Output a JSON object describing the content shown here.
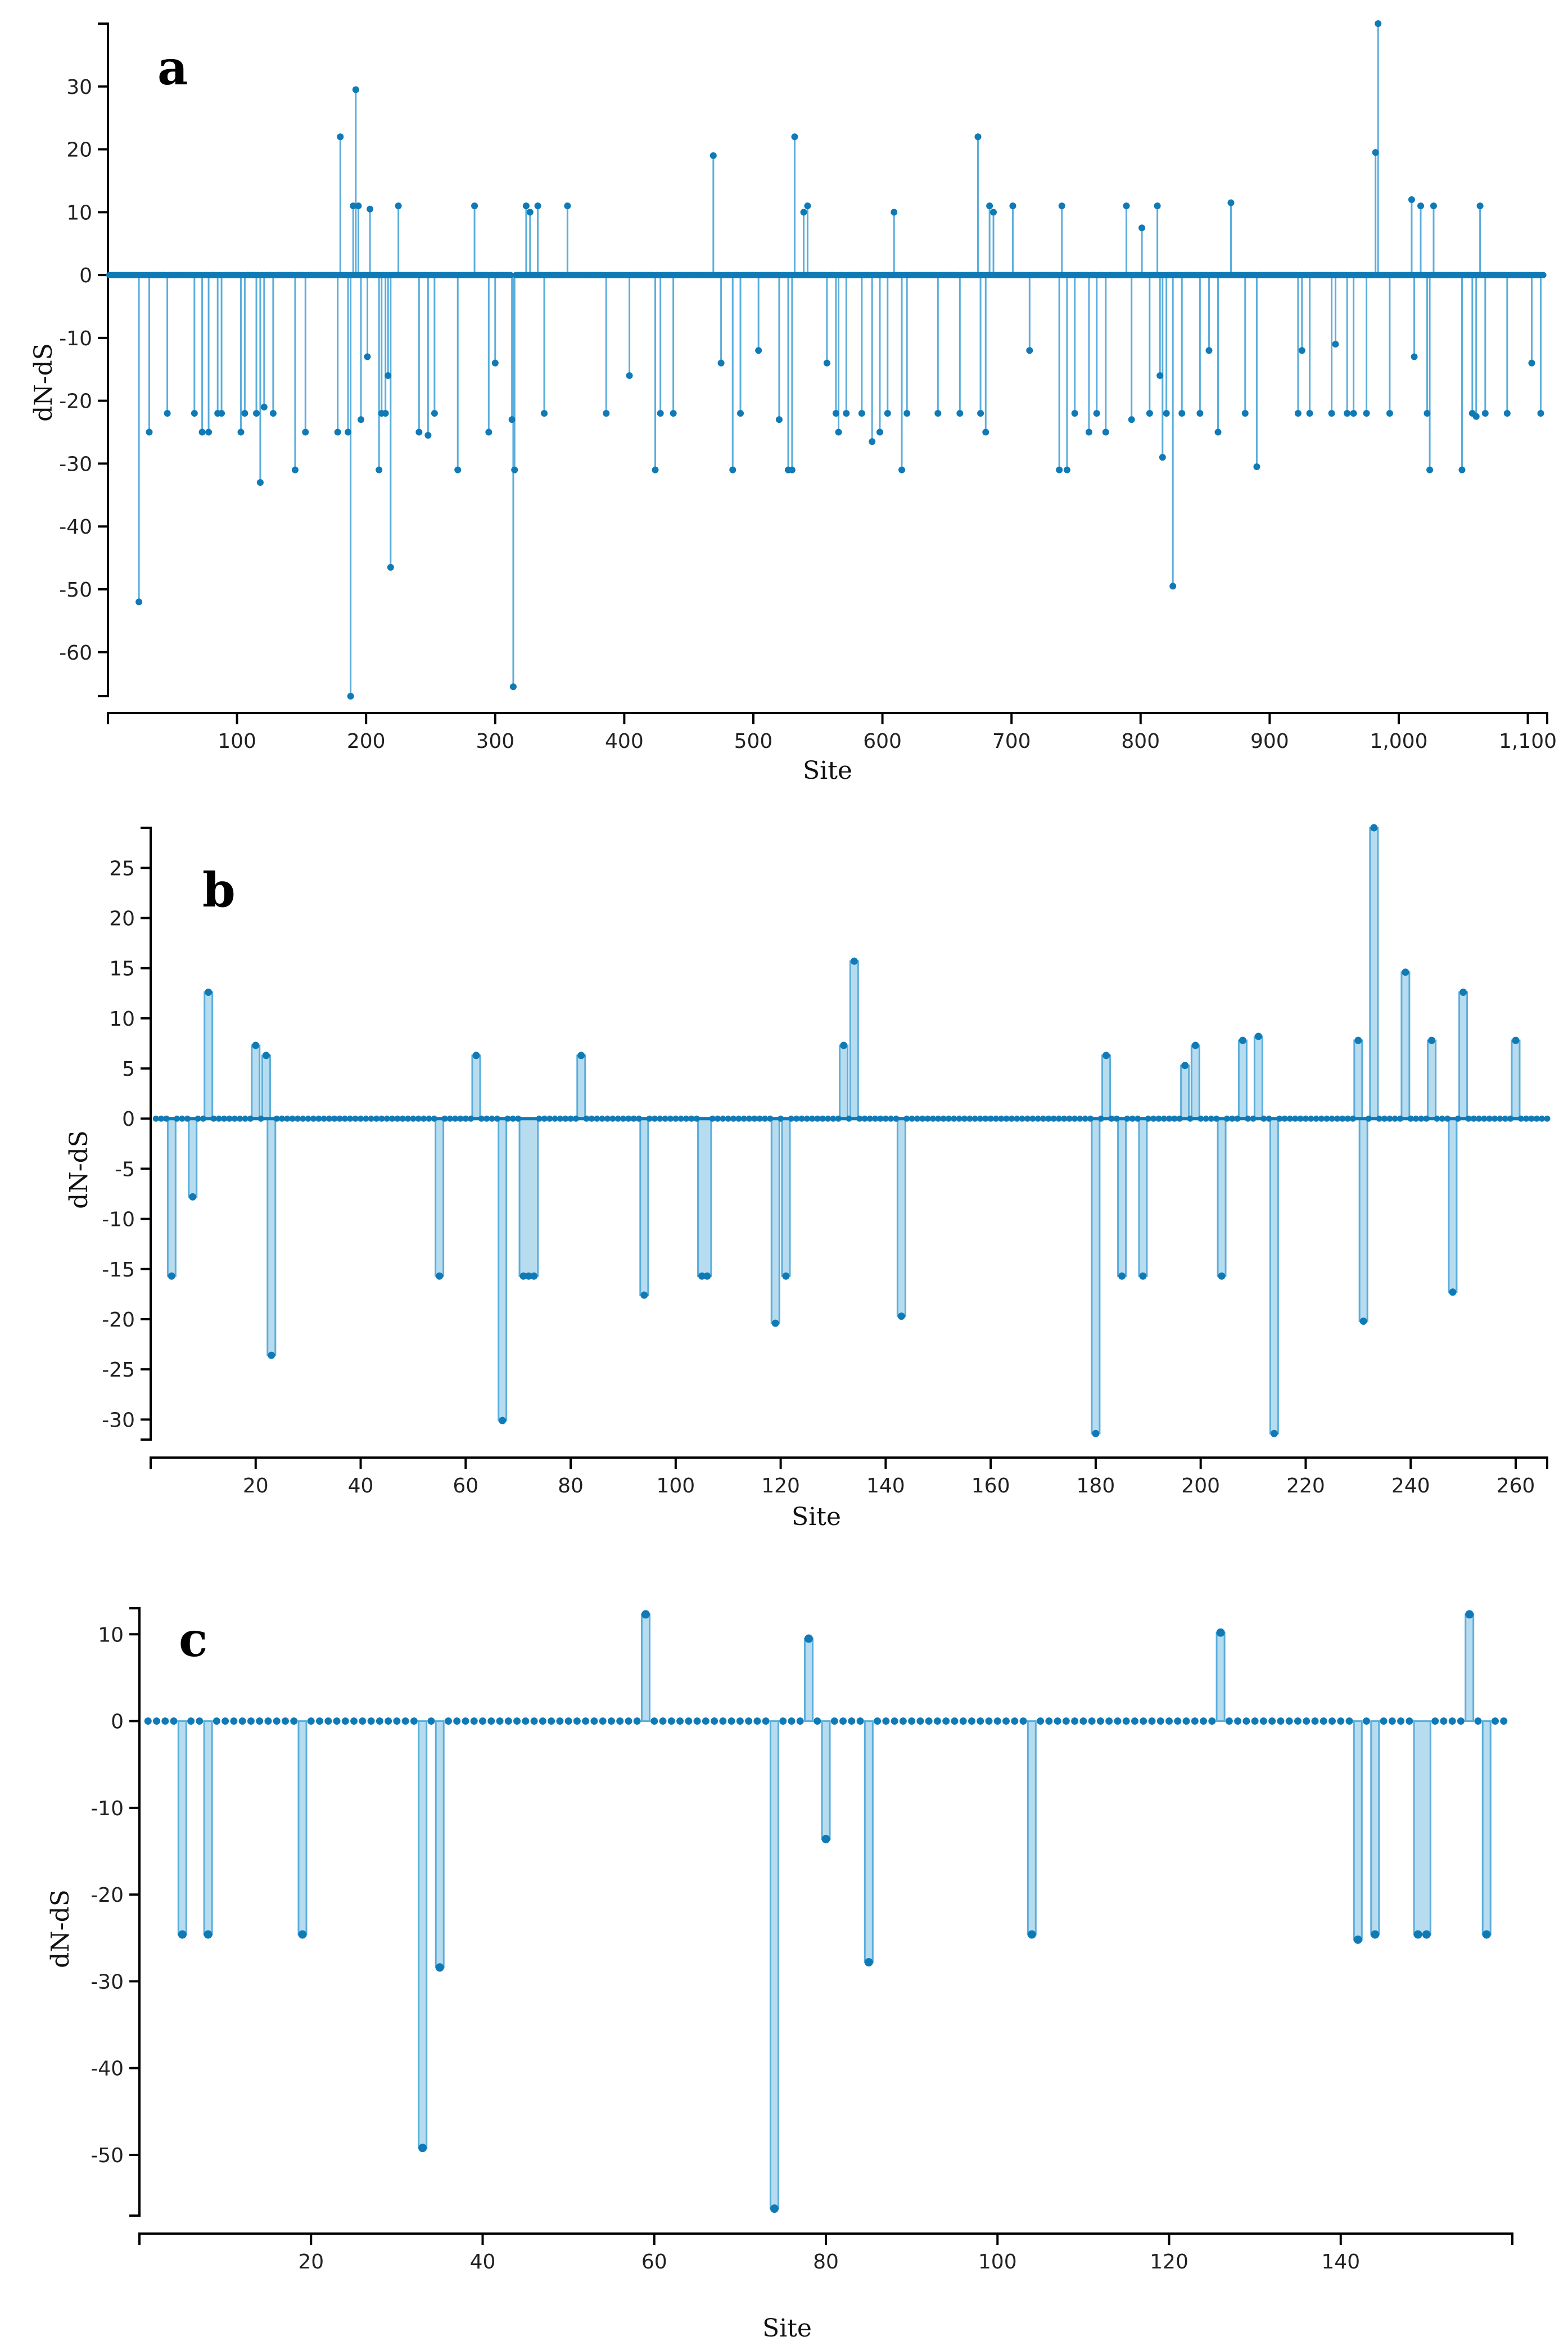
{
  "colors": {
    "dot": "#0f7ab5",
    "stem": "#5aaedc",
    "fill": "#b7dcef",
    "axis": "#000000"
  },
  "chart_data": [
    {
      "type": "scatter",
      "panel_label": "a",
      "title": "",
      "xlabel": "Site",
      "ylabel": "dN-dS",
      "xlim": [
        0,
        1115
      ],
      "ylim": [
        -67,
        40
      ],
      "x_ticks": [
        100,
        200,
        300,
        400,
        500,
        600,
        700,
        800,
        900,
        1000,
        1100
      ],
      "x_tick_labels": [
        "100",
        "200",
        "300",
        "400",
        "500",
        "600",
        "700",
        "800",
        "900",
        "1,000",
        "1,100"
      ],
      "y_ticks": [
        30,
        20,
        10,
        0,
        -10,
        -20,
        -30,
        -40,
        -50,
        -60
      ],
      "y_tick_labels": [
        "30",
        "20",
        "10",
        "0",
        "-10",
        "-20",
        "-30",
        "-40",
        "-50",
        "-60"
      ],
      "render_style": "stem",
      "n_sites": 1112,
      "baseline_value": 0,
      "series": [
        {
          "name": "dN-dS",
          "points": [
            [
              24,
              -52
            ],
            [
              32,
              -25
            ],
            [
              46,
              -22
            ],
            [
              67,
              -22
            ],
            [
              73,
              -25
            ],
            [
              78,
              -25
            ],
            [
              85,
              -22
            ],
            [
              88,
              -22
            ],
            [
              103,
              -25
            ],
            [
              106,
              -22
            ],
            [
              115,
              -22
            ],
            [
              118,
              -33
            ],
            [
              121,
              -21
            ],
            [
              128,
              -22
            ],
            [
              145,
              -31
            ],
            [
              153,
              -25
            ],
            [
              178,
              -25
            ],
            [
              180,
              22
            ],
            [
              186,
              -25
            ],
            [
              188,
              -67
            ],
            [
              190,
              11
            ],
            [
              192,
              29.5
            ],
            [
              194,
              11
            ],
            [
              196,
              -23
            ],
            [
              201,
              -13
            ],
            [
              203,
              10.5
            ],
            [
              210,
              -31
            ],
            [
              212,
              -22
            ],
            [
              215,
              -22
            ],
            [
              217,
              -16
            ],
            [
              219,
              -46.5
            ],
            [
              225,
              11
            ],
            [
              241,
              -25
            ],
            [
              248,
              -25.5
            ],
            [
              253,
              -22
            ],
            [
              271,
              -31
            ],
            [
              284,
              11
            ],
            [
              295,
              -25
            ],
            [
              300,
              -14
            ],
            [
              313,
              -23
            ],
            [
              314,
              -65.5
            ],
            [
              315,
              -31
            ],
            [
              324,
              11
            ],
            [
              327,
              10
            ],
            [
              333,
              11
            ],
            [
              338,
              -22
            ],
            [
              356,
              11
            ],
            [
              386,
              -22
            ],
            [
              404,
              -16
            ],
            [
              424,
              -31
            ],
            [
              428,
              -22
            ],
            [
              438,
              -22
            ],
            [
              469,
              19
            ],
            [
              475,
              -14
            ],
            [
              484,
              -31
            ],
            [
              490,
              -22
            ],
            [
              504,
              -12
            ],
            [
              520,
              -23
            ],
            [
              527,
              -31
            ],
            [
              530,
              -31
            ],
            [
              532,
              22
            ],
            [
              539,
              10
            ],
            [
              542,
              11
            ],
            [
              557,
              -14
            ],
            [
              564,
              -22
            ],
            [
              566,
              -25
            ],
            [
              572,
              -22
            ],
            [
              584,
              -22
            ],
            [
              592,
              -26.5
            ],
            [
              598,
              -25
            ],
            [
              604,
              -22
            ],
            [
              609,
              10
            ],
            [
              615,
              -31
            ],
            [
              619,
              -22
            ],
            [
              643,
              -22
            ],
            [
              660,
              -22
            ],
            [
              674,
              22
            ],
            [
              676,
              -22
            ],
            [
              680,
              -25
            ],
            [
              683,
              11
            ],
            [
              686,
              10
            ],
            [
              701,
              11
            ],
            [
              714,
              -12
            ],
            [
              737,
              -31
            ],
            [
              739,
              11
            ],
            [
              743,
              -31
            ],
            [
              749,
              -22
            ],
            [
              760,
              -25
            ],
            [
              766,
              -22
            ],
            [
              773,
              -25
            ],
            [
              789,
              11
            ],
            [
              793,
              -23
            ],
            [
              801,
              7.5
            ],
            [
              807,
              -22
            ],
            [
              813,
              11
            ],
            [
              815,
              -16
            ],
            [
              817,
              -29
            ],
            [
              820,
              -22
            ],
            [
              825,
              -49.5
            ],
            [
              832,
              -22
            ],
            [
              846,
              -22
            ],
            [
              853,
              -12
            ],
            [
              860,
              -25
            ],
            [
              870,
              11.5
            ],
            [
              881,
              -22
            ],
            [
              890,
              -30.5
            ],
            [
              922,
              -22
            ],
            [
              925,
              -12
            ],
            [
              931,
              -22
            ],
            [
              948,
              -22
            ],
            [
              951,
              -11
            ],
            [
              960,
              -22
            ],
            [
              965,
              -22
            ],
            [
              975,
              -22
            ],
            [
              982,
              19.5
            ],
            [
              984,
              40
            ],
            [
              993,
              -22
            ],
            [
              1010,
              12
            ],
            [
              1012,
              -13
            ],
            [
              1017,
              11
            ],
            [
              1022,
              -22
            ],
            [
              1024,
              -31
            ],
            [
              1027,
              11
            ],
            [
              1049,
              -31
            ],
            [
              1057,
              -22
            ],
            [
              1060,
              -22.5
            ],
            [
              1063,
              11
            ],
            [
              1067,
              -22
            ],
            [
              1084,
              -22
            ],
            [
              1103,
              -14
            ],
            [
              1110,
              -22
            ]
          ]
        }
      ]
    },
    {
      "type": "scatter",
      "panel_label": "b",
      "title": "",
      "xlabel": "Site",
      "ylabel": "dN-dS",
      "xlim": [
        0,
        266
      ],
      "ylim": [
        -32,
        29
      ],
      "x_ticks": [
        20,
        40,
        60,
        80,
        100,
        120,
        140,
        160,
        180,
        200,
        220,
        240,
        260
      ],
      "x_tick_labels": [
        "20",
        "40",
        "60",
        "80",
        "100",
        "120",
        "140",
        "160",
        "180",
        "200",
        "220",
        "240",
        "260"
      ],
      "y_ticks": [
        25,
        20,
        15,
        10,
        5,
        0,
        -5,
        -10,
        -15,
        -20,
        -25,
        -30
      ],
      "y_tick_labels": [
        "25",
        "20",
        "15",
        "10",
        "5",
        "0",
        "-5",
        "-10",
        "-15",
        "-20",
        "-25",
        "-30"
      ],
      "render_style": "filled-step",
      "n_sites": 266,
      "baseline_value": 0,
      "series": [
        {
          "name": "dN-dS",
          "points": [
            [
              4,
              -15.7
            ],
            [
              8,
              -7.8
            ],
            [
              11,
              12.6
            ],
            [
              20,
              7.3
            ],
            [
              22,
              6.3
            ],
            [
              23,
              -23.6
            ],
            [
              55,
              -15.7
            ],
            [
              62,
              6.3
            ],
            [
              67,
              -30.1
            ],
            [
              71,
              -15.7
            ],
            [
              72,
              -15.7
            ],
            [
              73,
              -15.7
            ],
            [
              82,
              6.3
            ],
            [
              94,
              -17.6
            ],
            [
              105,
              -15.7
            ],
            [
              106,
              -15.7
            ],
            [
              119,
              -20.4
            ],
            [
              121,
              -15.7
            ],
            [
              132,
              7.3
            ],
            [
              134,
              15.7
            ],
            [
              143,
              -19.7
            ],
            [
              180,
              -31.4
            ],
            [
              182,
              6.3
            ],
            [
              185,
              -15.7
            ],
            [
              189,
              -15.7
            ],
            [
              197,
              5.3
            ],
            [
              199,
              7.3
            ],
            [
              204,
              -15.7
            ],
            [
              208,
              7.8
            ],
            [
              211,
              8.2
            ],
            [
              214,
              -31.4
            ],
            [
              230,
              7.8
            ],
            [
              231,
              -20.2
            ],
            [
              233,
              29.0
            ],
            [
              239,
              14.6
            ],
            [
              244,
              7.8
            ],
            [
              248,
              -17.3
            ],
            [
              250,
              12.6
            ],
            [
              260,
              7.8
            ]
          ]
        }
      ]
    },
    {
      "type": "scatter",
      "panel_label": "c",
      "title": "",
      "xlabel": "Site",
      "ylabel": "dN-dS",
      "xlim": [
        0,
        160
      ],
      "ylim": [
        -57,
        13
      ],
      "x_ticks": [
        20,
        40,
        60,
        80,
        100,
        120,
        140
      ],
      "x_tick_labels": [
        "20",
        "40",
        "60",
        "80",
        "100",
        "120",
        "140"
      ],
      "y_ticks": [
        10,
        0,
        -10,
        -20,
        -30,
        -40,
        -50
      ],
      "y_tick_labels": [
        "10",
        "0",
        "-10",
        "-20",
        "-30",
        "-40",
        "-50"
      ],
      "render_style": "filled-step",
      "n_sites": 159,
      "baseline_value": 0,
      "series": [
        {
          "name": "dN-dS",
          "points": [
            [
              5,
              -24.6
            ],
            [
              8,
              -24.6
            ],
            [
              19,
              -24.6
            ],
            [
              33,
              -49.2
            ],
            [
              35,
              -28.4
            ],
            [
              59,
              12.3
            ],
            [
              74,
              -56.2
            ],
            [
              78,
              9.5
            ],
            [
              80,
              -13.6
            ],
            [
              85,
              -27.8
            ],
            [
              104,
              -24.6
            ],
            [
              126,
              10.2
            ],
            [
              142,
              -25.2
            ],
            [
              144,
              -24.6
            ],
            [
              149,
              -24.6
            ],
            [
              150,
              -24.6
            ],
            [
              155,
              12.3
            ],
            [
              157,
              -24.6
            ]
          ]
        }
      ]
    }
  ]
}
